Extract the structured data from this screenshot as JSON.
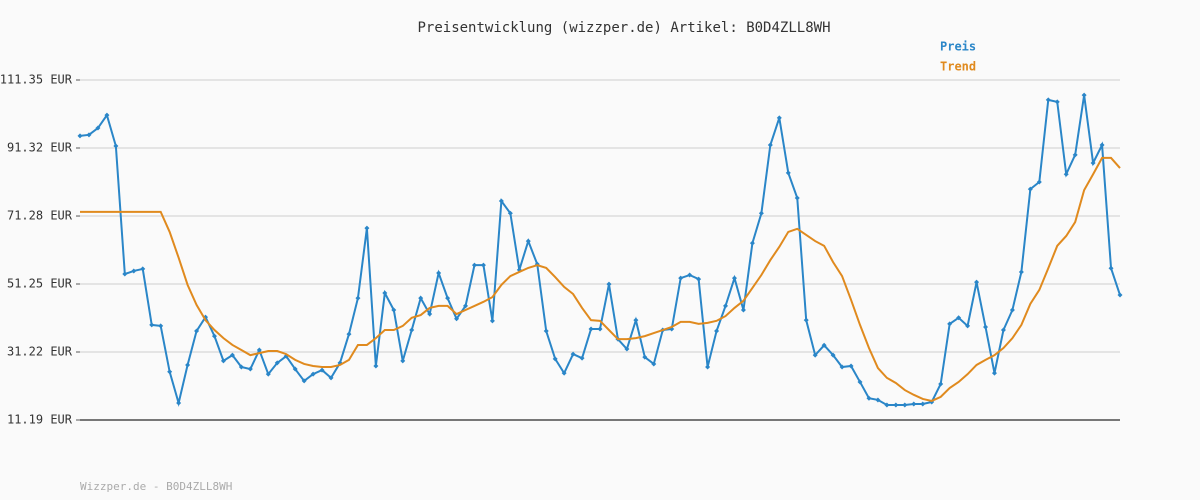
{
  "chart_data": {
    "type": "line",
    "title": "Preisentwicklung (wizzper.de) Artikel: B0D4ZLL8WH",
    "footer": "Wizzper.de - B0D4ZLL8WH",
    "categories": [
      null,
      null,
      null,
      null,
      null,
      null,
      null,
      null,
      null,
      null,
      null,
      null,
      null,
      null,
      null,
      null,
      null,
      null,
      null,
      null,
      null,
      null,
      null,
      null,
      null,
      null,
      null,
      null,
      null,
      null,
      null,
      null,
      null,
      null,
      null,
      null,
      null,
      null,
      null,
      null,
      null,
      null,
      null,
      null,
      null,
      null,
      null,
      null,
      null,
      null,
      null,
      null,
      null,
      null,
      null,
      null,
      null,
      null,
      null,
      null,
      null,
      null,
      null,
      null,
      null,
      null,
      null,
      null,
      null,
      null,
      null,
      null,
      null,
      null,
      null,
      null,
      null,
      null,
      null,
      null,
      null,
      null,
      null,
      null,
      null,
      null,
      null,
      null,
      null,
      null,
      null,
      null,
      null,
      null,
      null,
      null,
      null,
      null,
      null,
      null,
      null,
      null,
      null,
      null,
      null,
      null,
      null,
      null,
      null,
      null,
      null,
      null,
      null,
      null,
      null,
      null,
      null
    ],
    "series": [
      {
        "name": "Preis",
        "color": "#2a86c8",
        "markers": true,
        "values": [
          94.9,
          95.2,
          97.2,
          101.0,
          91.9,
          54.2,
          55.1,
          55.7,
          39.2,
          38.9,
          25.4,
          16.2,
          27.4,
          37.4,
          41.5,
          35.9,
          28.6,
          30.3,
          26.8,
          26.2,
          31.8,
          24.7,
          28.0,
          30.0,
          26.2,
          22.7,
          24.7,
          25.9,
          23.6,
          28.0,
          36.5,
          47.1,
          67.7,
          27.1,
          48.6,
          43.6,
          28.6,
          37.7,
          47.1,
          42.4,
          54.5,
          47.1,
          41.0,
          44.8,
          56.8,
          56.8,
          40.4,
          75.7,
          72.1,
          55.4,
          63.9,
          57.1,
          37.4,
          29.2,
          25.0,
          30.6,
          29.4,
          38.0,
          38.0,
          51.2,
          35.0,
          32.1,
          40.6,
          29.7,
          27.7,
          37.7,
          38.0,
          53.0,
          53.9,
          52.7,
          26.8,
          37.4,
          44.8,
          53.0,
          43.6,
          63.3,
          72.1,
          92.2,
          100.2,
          84.0,
          76.6,
          40.6,
          30.3,
          33.2,
          30.3,
          26.8,
          27.1,
          22.4,
          17.6,
          17.1,
          15.6,
          15.6,
          15.6,
          15.9,
          15.9,
          16.5,
          21.8,
          39.5,
          41.3,
          38.9,
          51.8,
          38.6,
          25.0,
          37.7,
          43.6,
          54.8,
          79.2,
          81.3,
          105.5,
          104.9,
          83.6,
          89.3,
          106.9,
          86.9,
          92.2,
          55.9,
          48.0
        ]
      },
      {
        "name": "Trend",
        "color": "#e08a1e",
        "markers": false,
        "values": [
          72.5,
          72.5,
          72.5,
          72.5,
          72.5,
          72.5,
          72.5,
          72.5,
          72.5,
          72.5,
          66.6,
          59.0,
          51.0,
          45.1,
          40.6,
          37.7,
          35.3,
          33.3,
          31.8,
          30.3,
          30.9,
          31.5,
          31.5,
          30.6,
          28.9,
          27.7,
          27.1,
          26.8,
          26.8,
          27.4,
          28.9,
          33.3,
          33.3,
          35.3,
          37.7,
          37.7,
          38.9,
          41.3,
          42.1,
          44.2,
          44.8,
          44.8,
          42.4,
          43.6,
          44.8,
          46.0,
          47.4,
          51.0,
          53.6,
          54.8,
          56.0,
          56.8,
          56.0,
          53.3,
          50.4,
          48.3,
          44.2,
          40.6,
          40.4,
          37.7,
          35.0,
          35.0,
          35.3,
          35.9,
          36.8,
          37.7,
          38.6,
          40.1,
          40.1,
          39.5,
          39.8,
          40.4,
          41.8,
          44.2,
          46.3,
          50.1,
          53.9,
          58.3,
          62.2,
          66.6,
          67.5,
          65.7,
          63.9,
          62.5,
          57.7,
          53.6,
          46.6,
          39.2,
          32.4,
          26.5,
          23.6,
          22.1,
          20.0,
          18.6,
          17.4,
          16.8,
          18.0,
          20.6,
          22.4,
          24.7,
          27.4,
          28.9,
          30.3,
          32.4,
          35.3,
          39.2,
          45.4,
          49.5,
          55.9,
          62.5,
          65.4,
          69.5,
          78.9,
          83.6,
          88.4,
          88.4,
          85.4
        ]
      }
    ],
    "ylim": [
      11.19,
      111.35
    ],
    "yticks": [
      {
        "value": 11.19,
        "label": "11.19 EUR"
      },
      {
        "value": 31.22,
        "label": "31.22 EUR"
      },
      {
        "value": 51.25,
        "label": "51.25 EUR"
      },
      {
        "value": 71.28,
        "label": "71.28 EUR"
      },
      {
        "value": 91.32,
        "label": "91.32 EUR"
      },
      {
        "value": 111.35,
        "label": "111.35 EUR"
      }
    ],
    "grid": true
  }
}
